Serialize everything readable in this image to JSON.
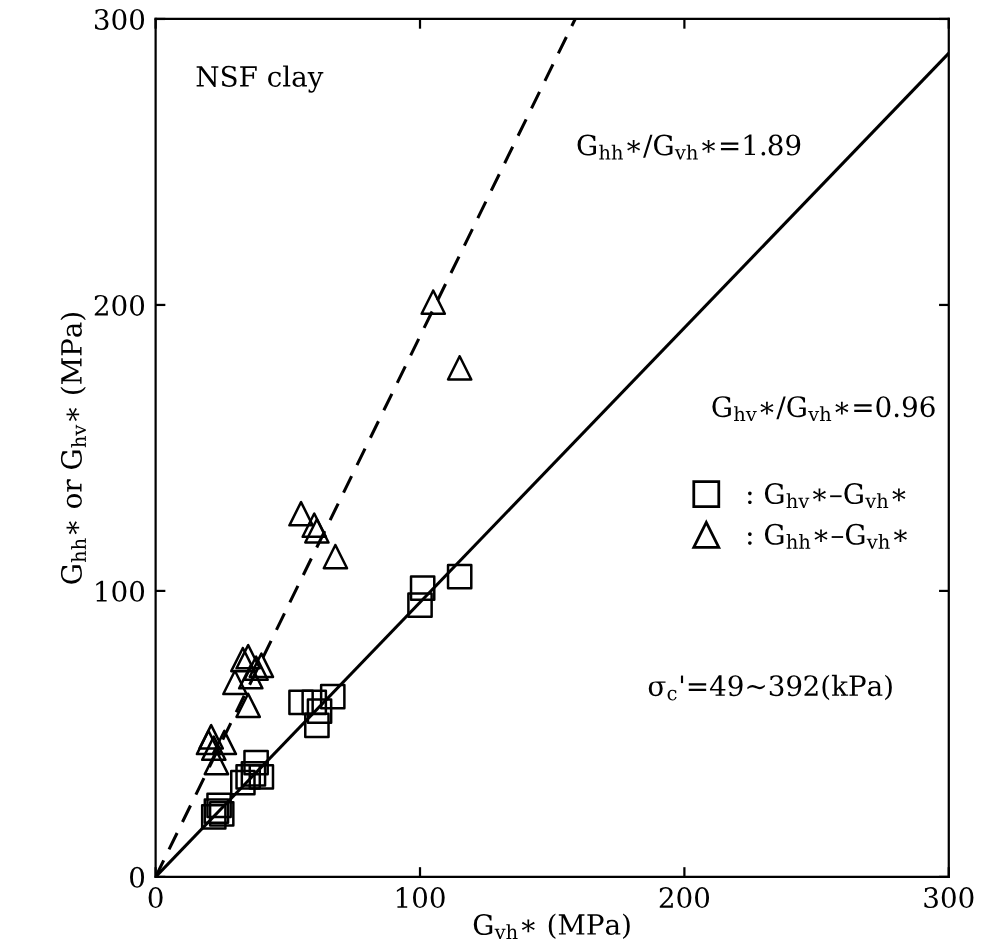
{
  "chart_data": {
    "type": "scatter",
    "xlabel": "G$_{vh}$∗ (MPa)",
    "ylabel": "G$_{hh}$∗ or G$_{hv}$∗ (MPa)",
    "xlim": [
      0,
      300
    ],
    "ylim": [
      0,
      300
    ],
    "xticks": [
      0,
      100,
      200,
      300
    ],
    "yticks": [
      0,
      100,
      200,
      300
    ],
    "grid": false,
    "legend": "right",
    "series": [
      {
        "name": ": G$_{hv}$∗–G$_{vh}$∗",
        "marker": "square",
        "color": "#000000",
        "x": [
          22,
          23,
          24,
          25,
          33,
          35,
          37,
          38,
          40,
          55,
          60,
          62,
          61,
          67,
          100,
          101,
          115
        ],
        "values": [
          21,
          23,
          25,
          22,
          33,
          35,
          36,
          40,
          35,
          61,
          61,
          58,
          53,
          63,
          95,
          101,
          105
        ]
      },
      {
        "name": ": G$_{hh}$∗–G$_{vh}$∗",
        "marker": "triangle",
        "color": "#000000",
        "x": [
          20,
          21,
          22,
          23,
          26,
          30,
          33,
          35,
          36,
          35,
          38,
          40,
          55,
          60,
          61,
          68,
          105,
          115
        ],
        "values": [
          47,
          49,
          45,
          40,
          47,
          68,
          76,
          77,
          70,
          60,
          73,
          74,
          127,
          123,
          121,
          112,
          201,
          178
        ]
      },
      {
        "type": "line",
        "line_style": "dashed",
        "color": "#000000",
        "x": [
          0,
          158.7
        ],
        "values": [
          0,
          300
        ]
      },
      {
        "type": "line",
        "line_style": "solid",
        "color": "#000000",
        "x": [
          0,
          300
        ],
        "values": [
          0,
          288
        ]
      }
    ],
    "annotations": [
      "NSF clay",
      "G$_{hh}$∗/G$_{vh}$∗=1.89",
      "G$_{hv}$∗/G$_{vh}$∗=0.96",
      "σ$_{c}$'=49∼392(kPa)"
    ]
  }
}
